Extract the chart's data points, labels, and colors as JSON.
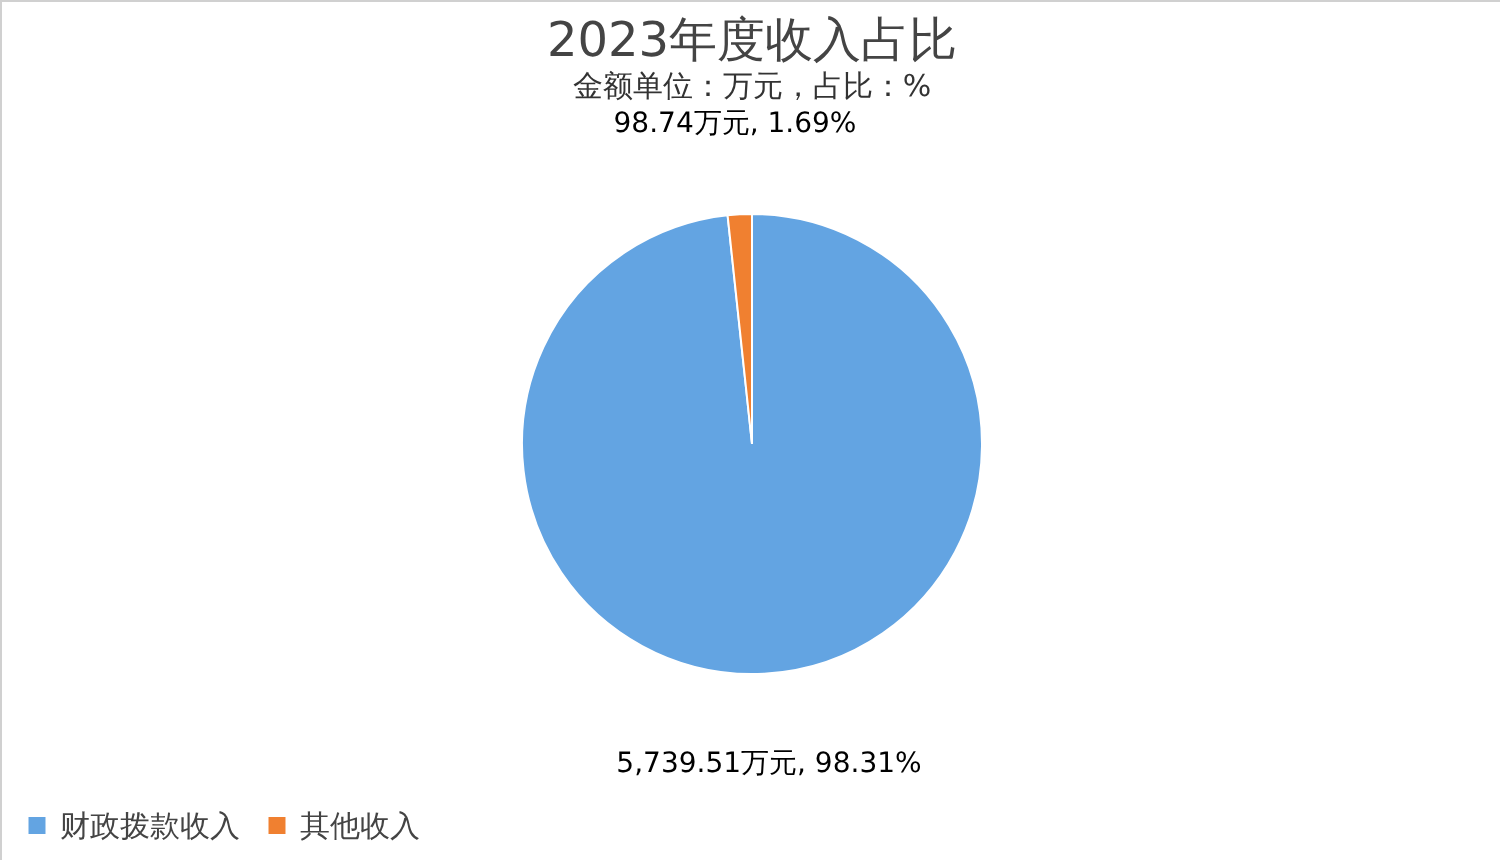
{
  "chart_data": {
    "type": "pie",
    "title": "2023年度收入占比",
    "subtitle": "金额单位：万元，占比：%",
    "categories": [
      "财政拨款收入",
      "其他收入"
    ],
    "values": [
      5739.51,
      98.74
    ],
    "colors": [
      "#63a4e2",
      "#f08030"
    ],
    "value_labels": [
      "5,739.51万元, 98.31%",
      "98.74万元, 1.69%"
    ],
    "legend": "bottom"
  }
}
